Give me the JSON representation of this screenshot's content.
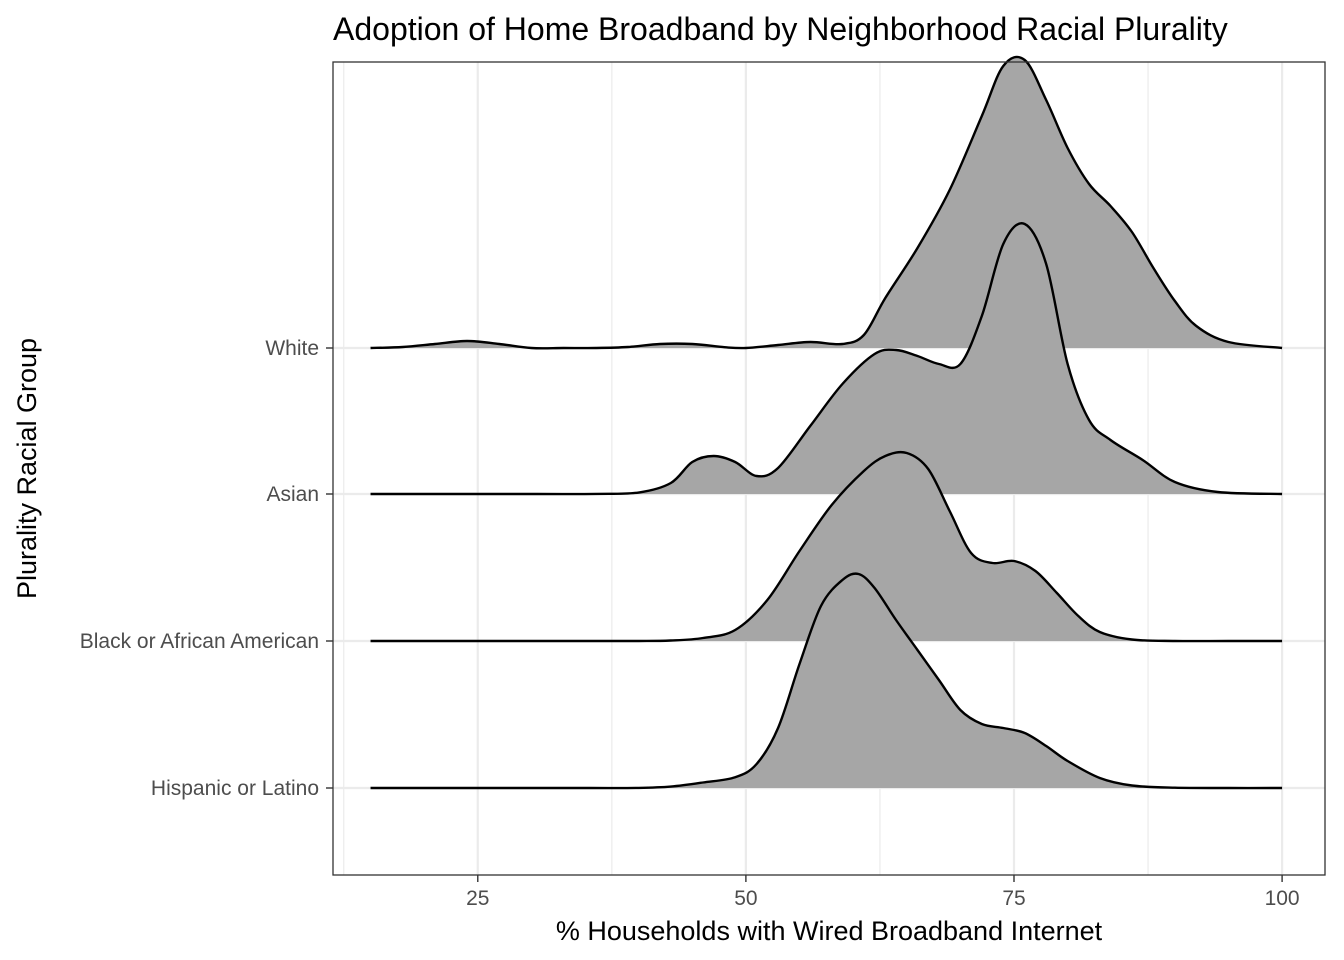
{
  "chart_data": {
    "type": "area",
    "subtype": "ridgeline-density",
    "title": "Adoption of Home Broadband by Neighborhood Racial Plurality",
    "xlabel": "% Households with Wired Broadband Internet",
    "ylabel": "Plurality Racial Group",
    "xlim": [
      11.5,
      104
    ],
    "x_ticks": [
      25,
      50,
      75,
      100
    ],
    "x_tick_labels": [
      "25",
      "50",
      "75",
      "100"
    ],
    "grid": true,
    "legend": "none",
    "theme": "bw",
    "fill_color": "#a6a6a6",
    "line_color": "#000000",
    "categories": [
      "Hispanic or Latino",
      "Black or African American",
      "Asian",
      "White"
    ],
    "series": [
      {
        "name": "Hispanic or Latino",
        "x": [
          15,
          25,
          35,
          40,
          43,
          46,
          49,
          51,
          53,
          55,
          57,
          59,
          60.5,
          62,
          64,
          66,
          68,
          70,
          72,
          74,
          76,
          78,
          80,
          83,
          86,
          90,
          95,
          100
        ],
        "height": [
          0.0,
          0.0,
          0.0,
          0.001,
          0.014,
          0.055,
          0.108,
          0.24,
          0.6,
          1.24,
          1.82,
          2.08,
          2.14,
          2.0,
          1.68,
          1.38,
          1.08,
          0.78,
          0.64,
          0.6,
          0.55,
          0.42,
          0.27,
          0.1,
          0.025,
          0.003,
          0.0,
          0.0
        ]
      },
      {
        "name": "Black or African American",
        "x": [
          15,
          30,
          40,
          43,
          46,
          49,
          52,
          55,
          58,
          61,
          63,
          65,
          67,
          69,
          71,
          73,
          75,
          77,
          79,
          81,
          83,
          86,
          90,
          95,
          100
        ],
        "height": [
          0.0,
          0.0,
          0.0,
          0.005,
          0.03,
          0.11,
          0.41,
          0.9,
          1.36,
          1.7,
          1.85,
          1.88,
          1.72,
          1.3,
          0.88,
          0.78,
          0.8,
          0.7,
          0.48,
          0.25,
          0.09,
          0.015,
          0.0,
          0.0,
          0.0
        ]
      },
      {
        "name": "Asian",
        "x": [
          15,
          30,
          36,
          40,
          43,
          45,
          47,
          49,
          51,
          53,
          56,
          59,
          62,
          64,
          66,
          68,
          70,
          72,
          74,
          76,
          78,
          80,
          82,
          84,
          87,
          90,
          94,
          100
        ],
        "height": [
          0.0,
          0.0,
          0.001,
          0.015,
          0.11,
          0.32,
          0.38,
          0.32,
          0.18,
          0.26,
          0.68,
          1.1,
          1.4,
          1.44,
          1.38,
          1.3,
          1.3,
          1.78,
          2.5,
          2.7,
          2.3,
          1.3,
          0.74,
          0.54,
          0.34,
          0.12,
          0.02,
          0.0
        ]
      },
      {
        "name": "White",
        "x": [
          15,
          18,
          21,
          24,
          27,
          30,
          33,
          36,
          39,
          42,
          45,
          48,
          50,
          53,
          56,
          59,
          61,
          63,
          66,
          69,
          72,
          74,
          76,
          78,
          80,
          82,
          84,
          86,
          88,
          90,
          92,
          95,
          100
        ],
        "height": [
          0.0,
          0.01,
          0.04,
          0.07,
          0.04,
          0.0,
          0.0,
          0.0,
          0.01,
          0.04,
          0.04,
          0.008,
          0.0,
          0.03,
          0.06,
          0.04,
          0.13,
          0.5,
          1.0,
          1.58,
          2.32,
          2.82,
          2.88,
          2.48,
          2.0,
          1.64,
          1.42,
          1.16,
          0.8,
          0.47,
          0.22,
          0.06,
          0.0
        ]
      }
    ]
  }
}
